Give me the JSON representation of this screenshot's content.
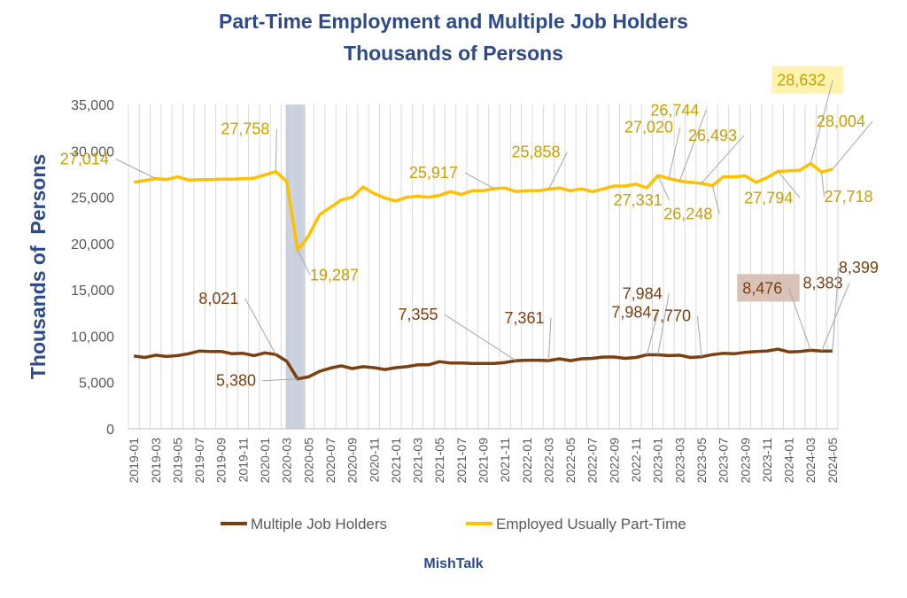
{
  "chart_data": {
    "type": "line",
    "title_line1": "Part-Time Employment and Multiple Job Holders",
    "title_line2": "Thousands of Persons",
    "ylabel": "Thousands of  Persons",
    "xlabel": "",
    "ylim": [
      0,
      35000
    ],
    "yticks": [
      0,
      5000,
      10000,
      15000,
      20000,
      25000,
      30000,
      35000
    ],
    "ytick_labels": [
      "0",
      "5,000",
      "10,000",
      "15,000",
      "20,000",
      "25,000",
      "30,000",
      "35,000"
    ],
    "x_start": "2019-01",
    "x_end": "2024-05",
    "xtick_labels": [
      "2019-01",
      "2019-03",
      "2019-05",
      "2019-07",
      "2019-09",
      "2019-11",
      "2020-01",
      "2020-03",
      "2020-05",
      "2020-07",
      "2020-09",
      "2020-11",
      "2021-01",
      "2021-03",
      "2021-05",
      "2021-07",
      "2021-09",
      "2021-11",
      "2022-01",
      "2022-03",
      "2022-05",
      "2022-07",
      "2022-09",
      "2022-11",
      "2023-01",
      "2023-03",
      "2023-05",
      "2023-07",
      "2023-09",
      "2023-11",
      "2024-01",
      "2024-03",
      "2024-05"
    ],
    "grid": "vertical",
    "legend_position": "bottom",
    "shaded_region": {
      "from": "2020-03",
      "to": "2020-04",
      "color": "#c9d1df"
    },
    "series": [
      {
        "name": "Multiple Job Holders",
        "color": "#7b3f10",
        "values": [
          7850,
          7700,
          7950,
          7800,
          7900,
          8100,
          8400,
          8350,
          8350,
          8100,
          8150,
          7900,
          8200,
          8021,
          7300,
          5380,
          5600,
          6200,
          6550,
          6800,
          6500,
          6700,
          6600,
          6400,
          6600,
          6700,
          6900,
          6900,
          7250,
          7100,
          7100,
          7050,
          7050,
          7050,
          7150,
          7355,
          7400,
          7400,
          7361,
          7550,
          7350,
          7550,
          7600,
          7750,
          7750,
          7600,
          7700,
          7984,
          7984,
          7900,
          7950,
          7700,
          7770,
          8000,
          8150,
          8100,
          8250,
          8350,
          8400,
          8600,
          8300,
          8350,
          8476,
          8383,
          8399
        ]
      },
      {
        "name": "Employed Usually Part-Time",
        "color": "#ffc000",
        "values": [
          26600,
          26800,
          27014,
          26900,
          27200,
          26850,
          26900,
          26900,
          26950,
          26950,
          27000,
          27050,
          27400,
          27758,
          26700,
          19287,
          20800,
          23100,
          23900,
          24700,
          25000,
          26100,
          25400,
          24900,
          24600,
          25000,
          25100,
          25000,
          25200,
          25600,
          25300,
          25700,
          25700,
          25917,
          26000,
          25600,
          25700,
          25700,
          25858,
          26000,
          25700,
          25900,
          25600,
          25900,
          26200,
          26200,
          26400,
          26000,
          27331,
          27020,
          26744,
          26600,
          26493,
          26248,
          27200,
          27200,
          27300,
          26600,
          27100,
          27794,
          27850,
          27900,
          28632,
          27718,
          28004
        ]
      }
    ],
    "annotations": [
      {
        "series": 1,
        "index": 2,
        "label": "27,014"
      },
      {
        "series": 1,
        "index": 13,
        "label": "27,758"
      },
      {
        "series": 1,
        "index": 15,
        "label": "19,287"
      },
      {
        "series": 1,
        "index": 33,
        "label": "25,917"
      },
      {
        "series": 1,
        "index": 38,
        "label": "25,858"
      },
      {
        "series": 1,
        "index": 48,
        "label": "27,331"
      },
      {
        "series": 1,
        "index": 49,
        "label": "27,020"
      },
      {
        "series": 1,
        "index": 50,
        "label": "26,744"
      },
      {
        "series": 1,
        "index": 52,
        "label": "26,493"
      },
      {
        "series": 1,
        "index": 53,
        "label": "26,248"
      },
      {
        "series": 1,
        "index": 59,
        "label": "27,794"
      },
      {
        "series": 1,
        "index": 62,
        "label": "28,632",
        "highlight": "#fff3b0"
      },
      {
        "series": 1,
        "index": 63,
        "label": "27,718"
      },
      {
        "series": 1,
        "index": 64,
        "label": "28,004"
      },
      {
        "series": 0,
        "index": 13,
        "label": "8,021"
      },
      {
        "series": 0,
        "index": 15,
        "label": "5,380"
      },
      {
        "series": 0,
        "index": 35,
        "label": "7,355"
      },
      {
        "series": 0,
        "index": 38,
        "label": "7,361"
      },
      {
        "series": 0,
        "index": 47,
        "label": "7,984"
      },
      {
        "series": 0,
        "index": 48,
        "label": "7,984"
      },
      {
        "series": 0,
        "index": 52,
        "label": "7,770"
      },
      {
        "series": 0,
        "index": 62,
        "label": "8,476",
        "highlight": "#d9c3b8"
      },
      {
        "series": 0,
        "index": 63,
        "label": "8,383"
      },
      {
        "series": 0,
        "index": 64,
        "label": "8,399"
      }
    ]
  },
  "footer": "MishTalk"
}
